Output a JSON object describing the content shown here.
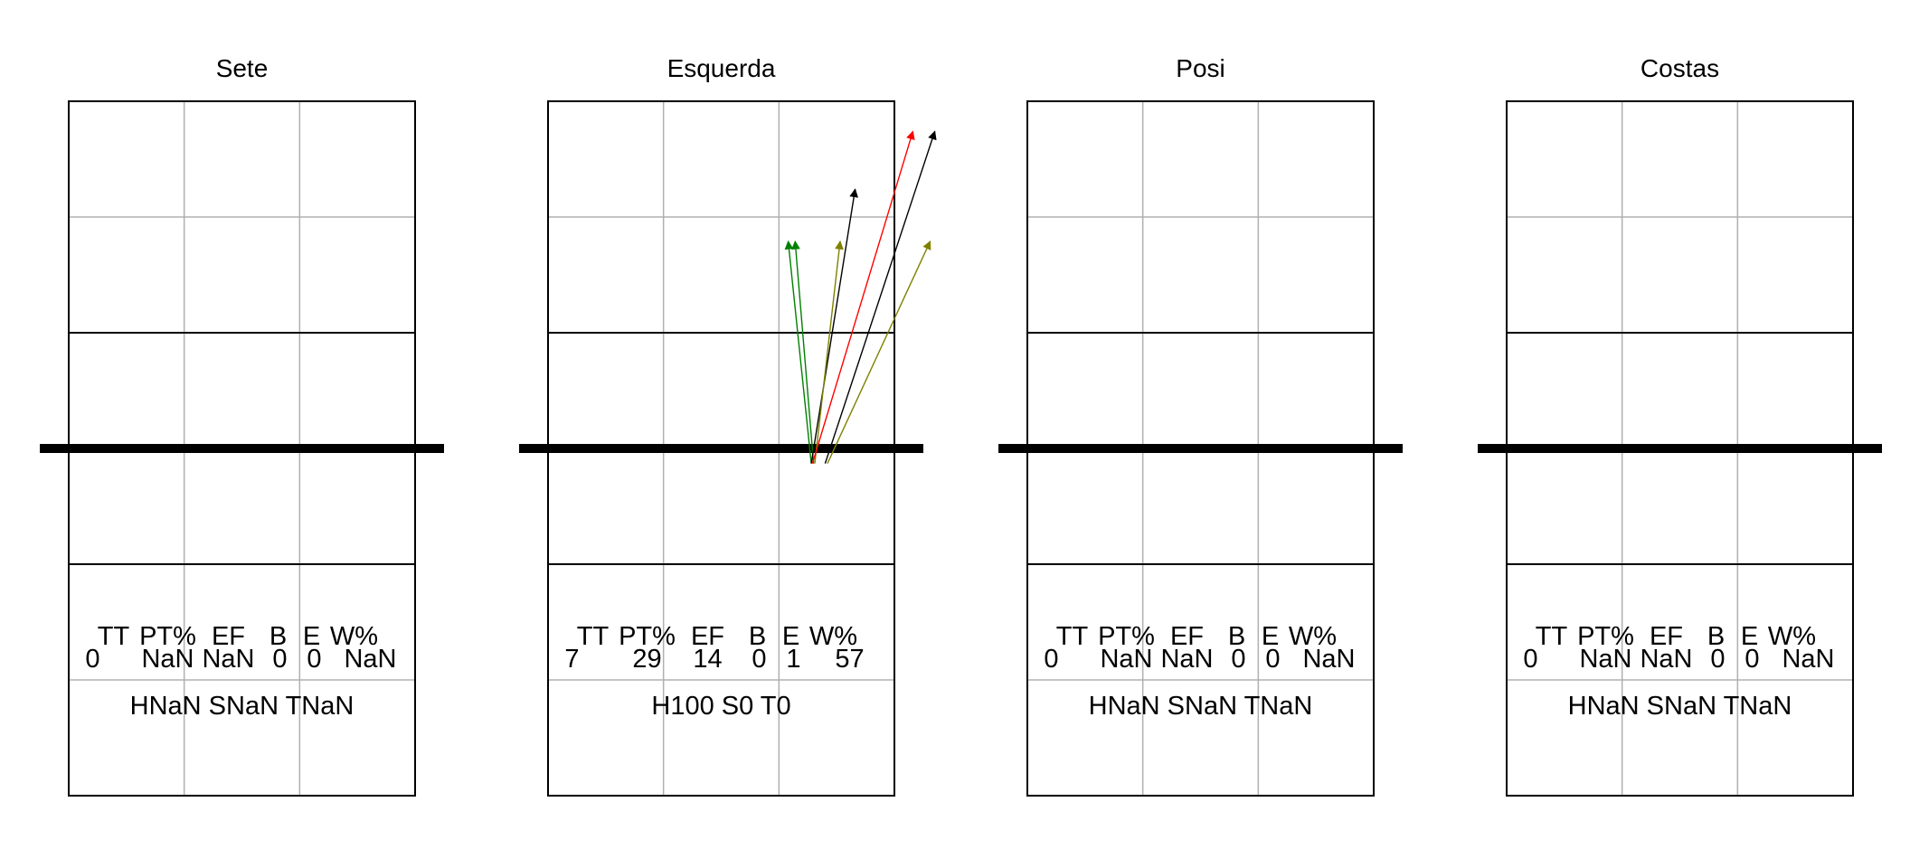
{
  "chart_data": [
    {
      "type": "court-diagram",
      "title": "Sete",
      "stats": {
        "headers": [
          "TT",
          "PT%",
          "EF",
          "B",
          "E",
          "W%"
        ],
        "values": [
          "0",
          "NaN",
          "NaN",
          "0",
          "0",
          "NaN"
        ],
        "summary": "HNaN SNaN TNaN"
      },
      "arrows": []
    },
    {
      "type": "court-diagram",
      "title": "Esquerda",
      "stats": {
        "headers": [
          "TT",
          "PT%",
          "EF",
          "B",
          "E",
          "W%"
        ],
        "values": [
          "7",
          "29",
          "14",
          "0",
          "1",
          "57"
        ],
        "summary": "H100 S0 T0"
      },
      "arrows": [
        {
          "from": [
            2.28,
            2.87
          ],
          "to": [
            2.08,
            4.79
          ],
          "color": "#008000"
        },
        {
          "from": [
            2.3,
            2.87
          ],
          "to": [
            2.14,
            4.79
          ],
          "color": "#008000"
        },
        {
          "from": [
            2.28,
            2.87
          ],
          "to": [
            2.66,
            5.24
          ],
          "color": "#000000"
        },
        {
          "from": [
            2.31,
            2.87
          ],
          "to": [
            2.53,
            4.79
          ],
          "color": "#808000"
        },
        {
          "from": [
            2.29,
            2.87
          ],
          "to": [
            3.16,
            5.74
          ],
          "color": "#ff0000"
        },
        {
          "from": [
            2.4,
            2.87
          ],
          "to": [
            3.35,
            5.74
          ],
          "color": "#000000"
        },
        {
          "from": [
            2.42,
            2.87
          ],
          "to": [
            3.31,
            4.79
          ],
          "color": "#808000"
        }
      ]
    },
    {
      "type": "court-diagram",
      "title": "Posi",
      "stats": {
        "headers": [
          "TT",
          "PT%",
          "EF",
          "B",
          "E",
          "W%"
        ],
        "values": [
          "0",
          "NaN",
          "NaN",
          "0",
          "0",
          "NaN"
        ],
        "summary": "HNaN SNaN TNaN"
      },
      "arrows": []
    },
    {
      "type": "court-diagram",
      "title": "Costas",
      "stats": {
        "headers": [
          "TT",
          "PT%",
          "EF",
          "B",
          "E",
          "W%"
        ],
        "values": [
          "0",
          "NaN",
          "NaN",
          "0",
          "0",
          "NaN"
        ],
        "summary": "HNaN SNaN TNaN"
      },
      "arrows": []
    }
  ]
}
